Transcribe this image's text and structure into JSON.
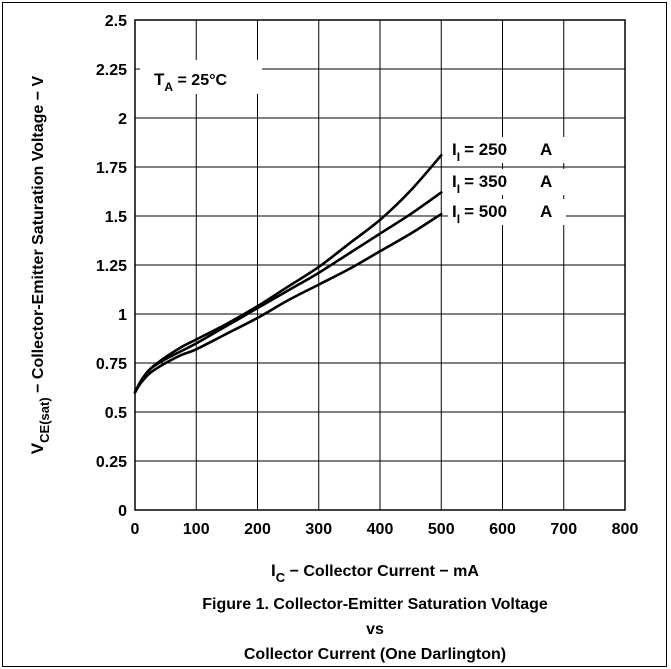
{
  "chart_data": {
    "type": "line",
    "xlabel": {
      "sym": "I",
      "sub": "C",
      "text": " − Collector Current − mA"
    },
    "ylabel": {
      "sym": "V",
      "sub": "CE(sat)",
      "text": " − Collector-Emitter Saturation Voltage − V"
    },
    "xlim": [
      0,
      800
    ],
    "ylim": [
      0,
      2.5
    ],
    "x_ticks": [
      "0",
      "100",
      "200",
      "300",
      "400",
      "500",
      "600",
      "700",
      "800"
    ],
    "y_ticks": [
      "0",
      "0.25",
      "0.5",
      "0.75",
      "1",
      "1.25",
      "1.5",
      "1.75",
      "2",
      "2.25",
      "2.5"
    ],
    "grid": true,
    "annotation": {
      "sym": "T",
      "sub": "A",
      "text": " = 25°C"
    },
    "series": [
      {
        "name": "I_I = 250 A",
        "label": {
          "sym": "I",
          "sub": "I",
          "value": "= 250",
          "unit": "A"
        },
        "x": [
          0,
          10,
          25,
          50,
          75,
          100,
          150,
          200,
          250,
          300,
          350,
          400,
          450,
          500
        ],
        "y": [
          0.6,
          0.66,
          0.72,
          0.78,
          0.83,
          0.87,
          0.95,
          1.04,
          1.14,
          1.24,
          1.36,
          1.48,
          1.63,
          1.81
        ]
      },
      {
        "name": "I_I = 350 A",
        "label": {
          "sym": "I",
          "sub": "I",
          "value": "= 350",
          "unit": "A"
        },
        "x": [
          0,
          10,
          25,
          50,
          75,
          100,
          150,
          200,
          250,
          300,
          350,
          400,
          450,
          500
        ],
        "y": [
          0.6,
          0.66,
          0.72,
          0.77,
          0.81,
          0.85,
          0.94,
          1.03,
          1.12,
          1.21,
          1.31,
          1.41,
          1.51,
          1.62
        ]
      },
      {
        "name": "I_I = 500 A",
        "label": {
          "sym": "I",
          "sub": "I",
          "value": "= 500",
          "unit": "A"
        },
        "x": [
          0,
          10,
          25,
          50,
          75,
          100,
          150,
          200,
          250,
          300,
          350,
          400,
          450,
          500
        ],
        "y": [
          0.6,
          0.65,
          0.7,
          0.75,
          0.79,
          0.82,
          0.9,
          0.98,
          1.07,
          1.15,
          1.23,
          1.32,
          1.41,
          1.51
        ]
      }
    ]
  },
  "caption": {
    "line1": "Figure 1. Collector-Emitter Saturation Voltage",
    "line2": "vs",
    "line3": "Collector Current (One Darlington)"
  }
}
